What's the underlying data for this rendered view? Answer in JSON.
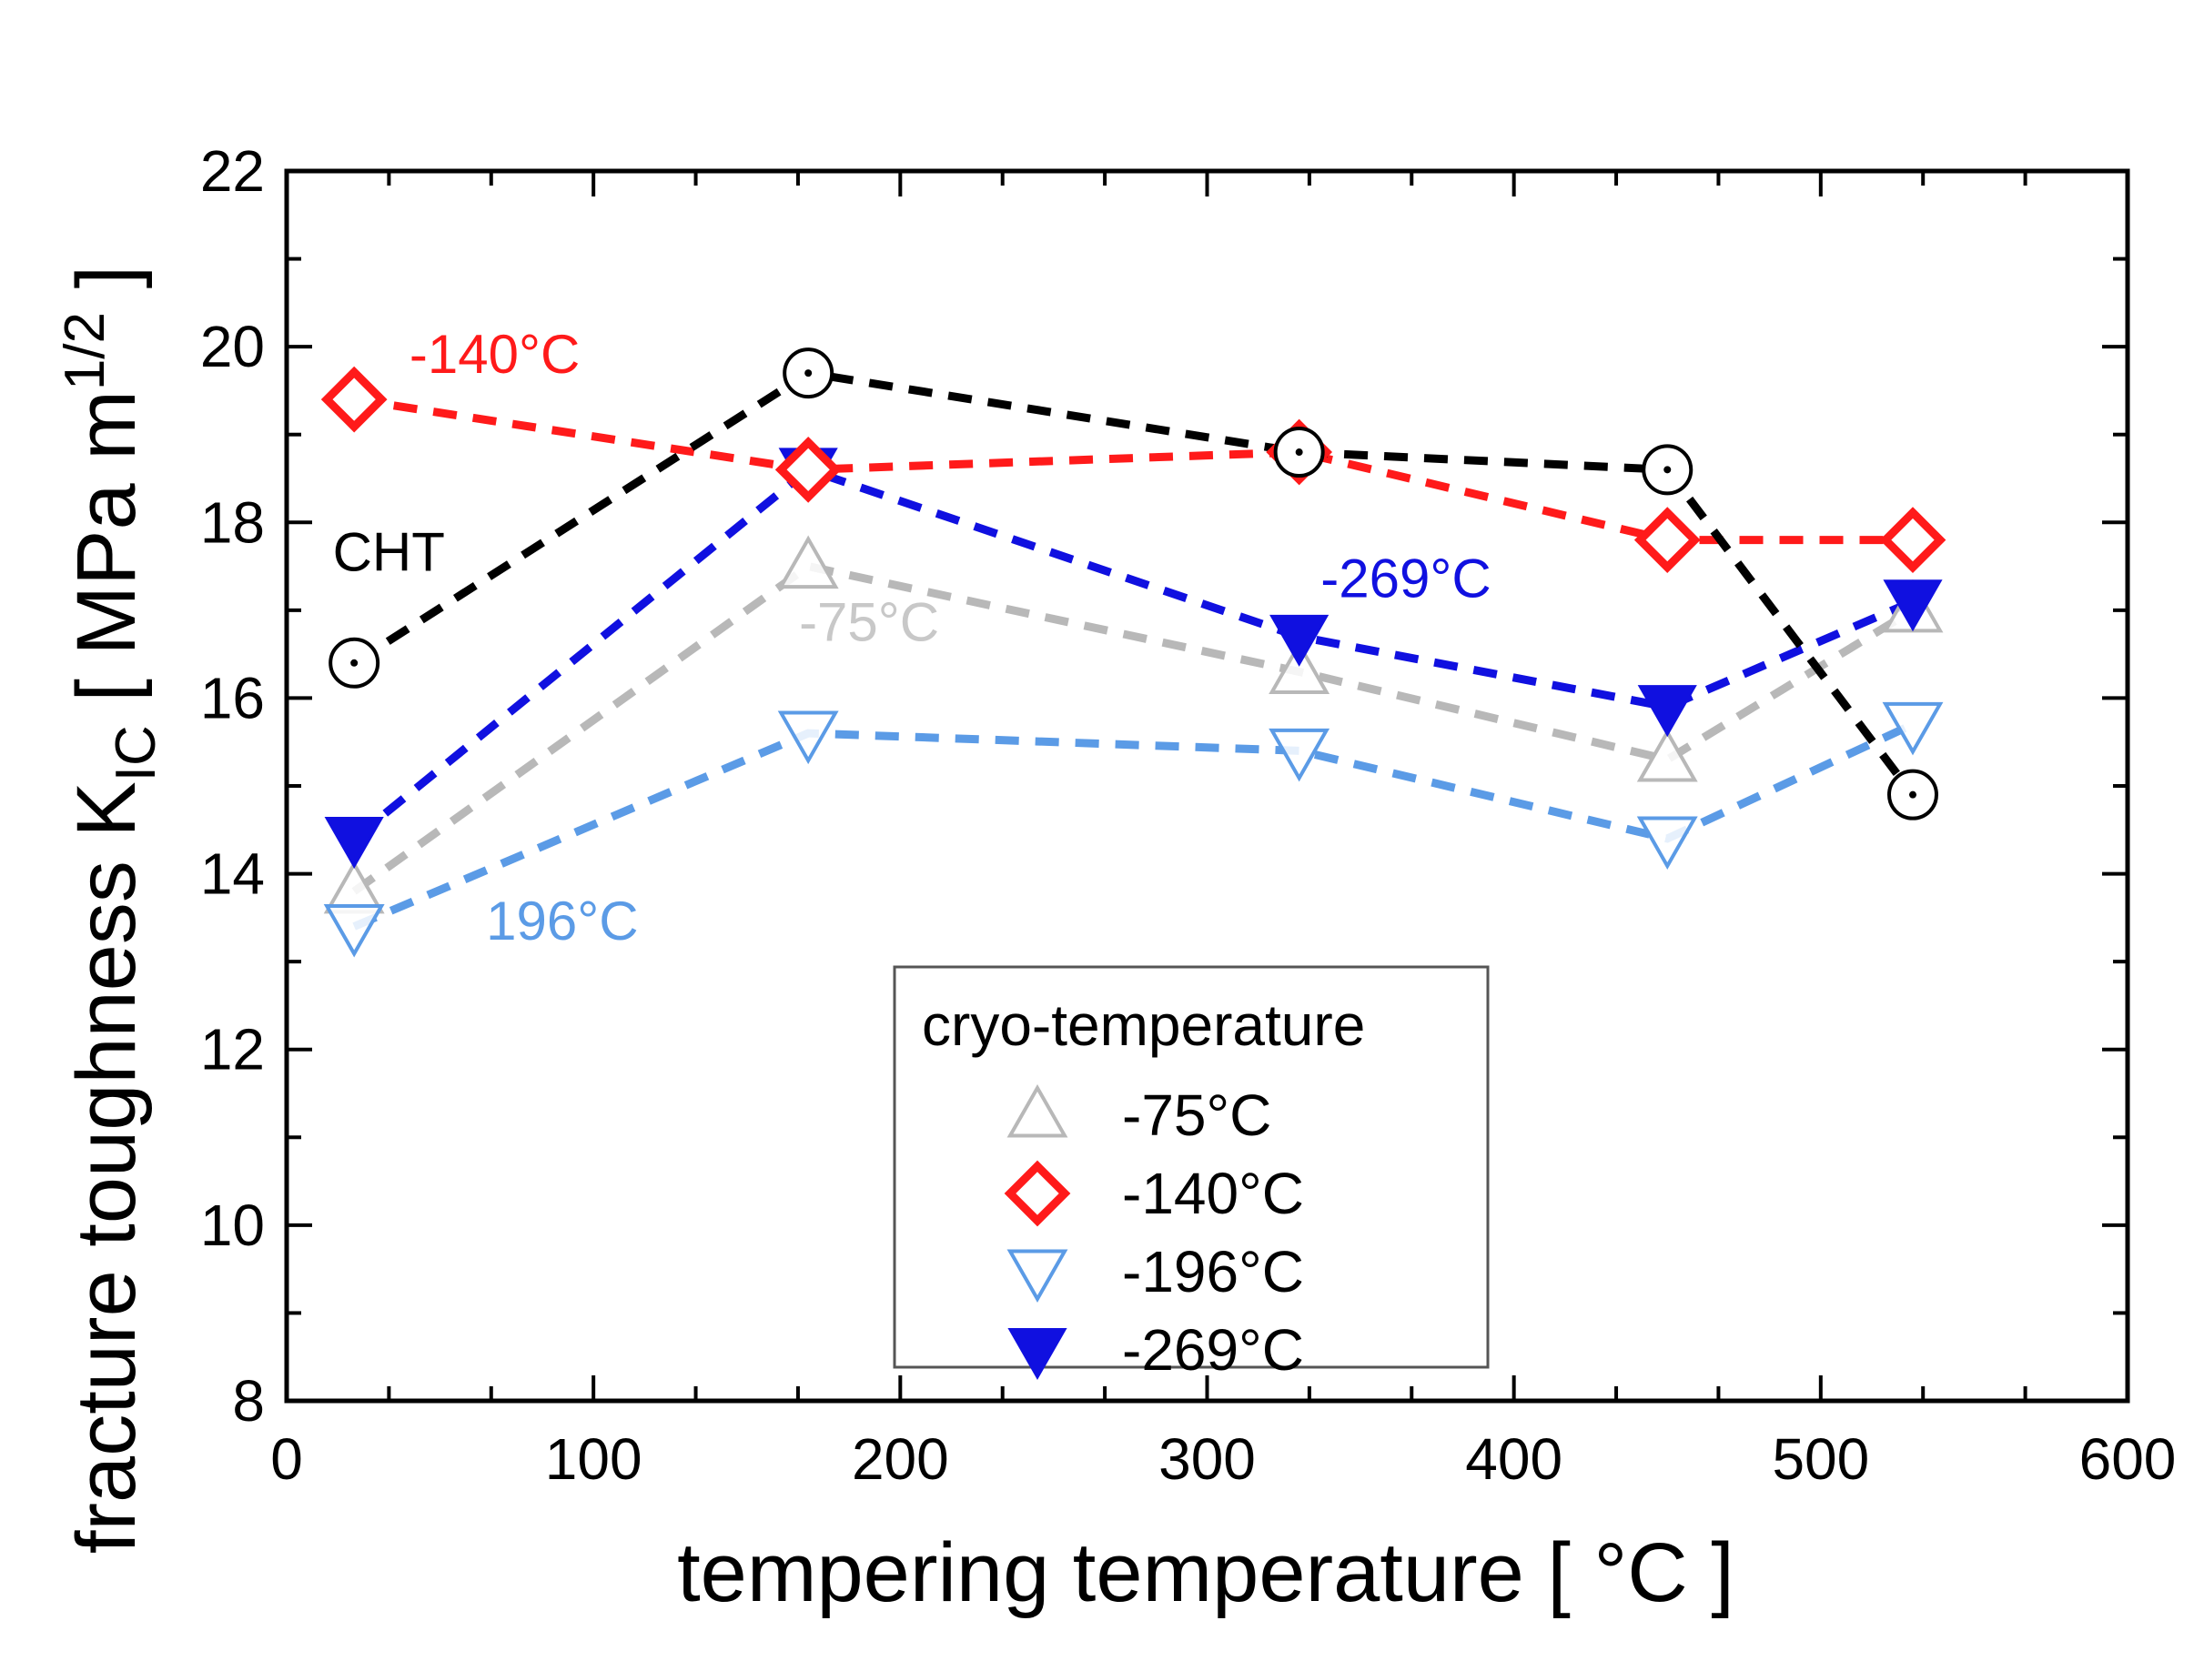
{
  "chart_data": {
    "type": "line",
    "xlabel": "tempering temperature  [ °C ]",
    "ylabel_main": "fracture toughness  K",
    "ylabel_sub": "IC",
    "ylabel_unit": "  [ MPa m",
    "ylabel_exp": "1/2",
    "ylabel_close": " ]",
    "xlim": [
      0,
      600
    ],
    "ylim": [
      8,
      22
    ],
    "x_ticks": [
      0,
      100,
      200,
      300,
      400,
      500,
      600
    ],
    "y_ticks": [
      8,
      10,
      12,
      14,
      16,
      18,
      20,
      22
    ],
    "legend": {
      "title": "cryo-temperature",
      "placement": "bottom-center"
    },
    "series": [
      {
        "name": "CHT",
        "legend_label": "",
        "color": "#000000",
        "marker": "circle-dot",
        "x": [
          22,
          170,
          330,
          450,
          530
        ],
        "y": [
          16.4,
          19.7,
          18.8,
          18.6,
          14.9
        ]
      },
      {
        "name": "-75°C",
        "legend_label": "-75°C",
        "color": "#b8b8b8",
        "marker": "triangle-up-open",
        "x": [
          22,
          170,
          330,
          450,
          530
        ],
        "y": [
          13.8,
          17.5,
          16.3,
          15.3,
          17.0
        ]
      },
      {
        "name": "-140°C",
        "legend_label": "-140°C",
        "color": "#ff1a1a",
        "marker": "diamond-open",
        "x": [
          22,
          170,
          330,
          450,
          530
        ],
        "y": [
          19.4,
          18.6,
          18.8,
          17.8,
          17.8
        ]
      },
      {
        "name": "-196°C",
        "legend_label": "-196°C",
        "color": "#5b9be6",
        "marker": "triangle-down-open",
        "x": [
          22,
          170,
          330,
          450,
          530
        ],
        "y": [
          13.4,
          15.6,
          15.4,
          14.4,
          15.7
        ]
      },
      {
        "name": "-269°C",
        "legend_label": "-269°C",
        "color": "#1010e0",
        "marker": "triangle-down-filled",
        "x": [
          22,
          170,
          330,
          450,
          530
        ],
        "y": [
          14.4,
          18.6,
          16.7,
          15.9,
          17.1
        ]
      }
    ],
    "annotations": [
      {
        "text": "-140°C",
        "color": "#ff1a1a",
        "x": 40,
        "y": 19.7
      },
      {
        "text": "CHT",
        "color": "#000000",
        "x": 15,
        "y": 17.45
      },
      {
        "text": "-75°C",
        "color": "#c8c8c8",
        "x": 167,
        "y": 16.65
      },
      {
        "text": "-269°C",
        "color": "#1010e0",
        "x": 337,
        "y": 17.15
      },
      {
        "text": "196°C",
        "color": "#5b9be6",
        "x": 65,
        "y": 13.25
      }
    ]
  }
}
